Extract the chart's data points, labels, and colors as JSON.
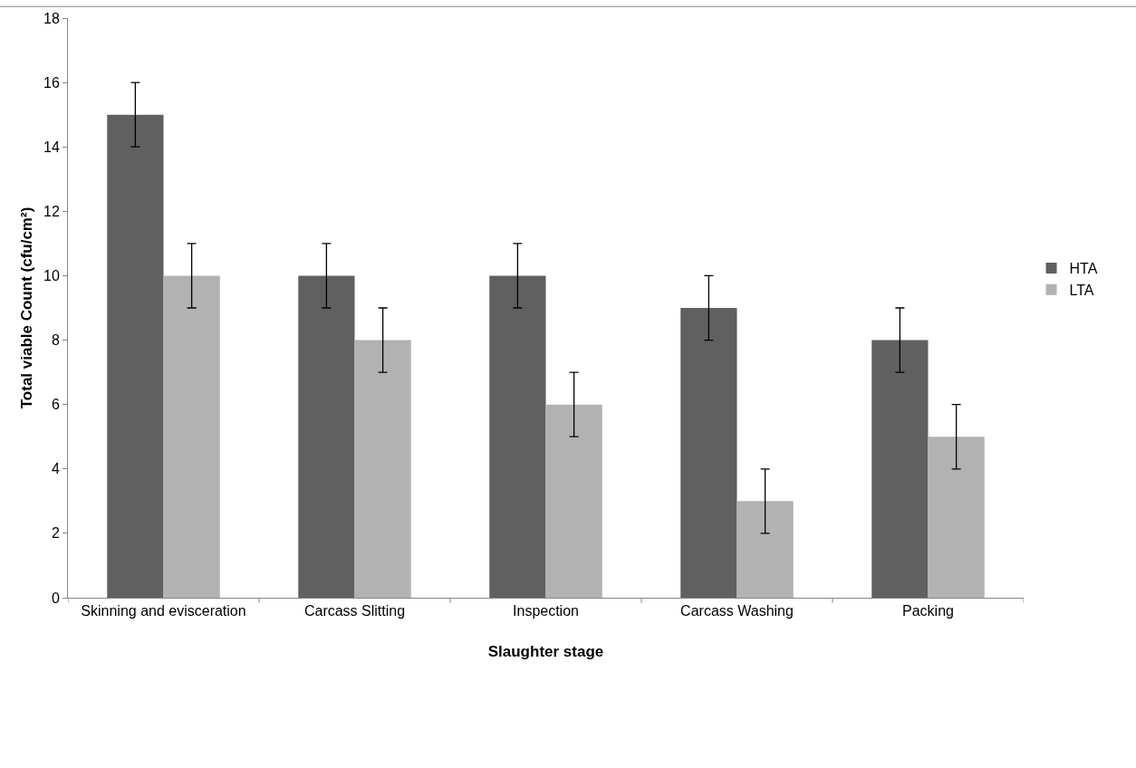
{
  "chart_data": {
    "type": "bar",
    "xlabel": "Slaughter stage",
    "ylabel": "Total viable Count (cfu/cm²)",
    "categories": [
      "Skinning and evisceration",
      "Carcass Slitting",
      "Inspection",
      "Carcass Washing",
      "Packing"
    ],
    "series": [
      {
        "name": "HTA",
        "color": "#606060",
        "values": [
          15,
          10,
          10,
          9,
          8
        ],
        "errors": [
          1,
          1,
          1,
          1,
          1
        ]
      },
      {
        "name": "LTA",
        "color": "#b2b2b2",
        "values": [
          10,
          8,
          6,
          3,
          5
        ],
        "errors": [
          1,
          1,
          1,
          1,
          1
        ]
      }
    ],
    "ylim": [
      0,
      18
    ],
    "yticks": [
      0,
      2,
      4,
      6,
      8,
      10,
      12,
      14,
      16,
      18
    ],
    "grid": false,
    "legend": "right"
  }
}
